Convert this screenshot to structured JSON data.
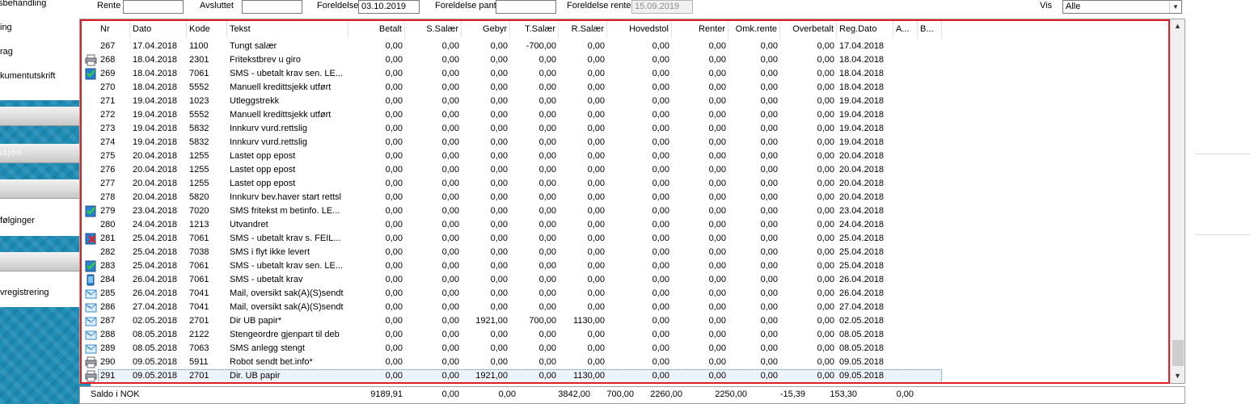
{
  "sidebar": {
    "top_items": [
      "sbehandling",
      "ing",
      "rag",
      "kumentutskrift"
    ],
    "group1_title": "",
    "group2_title": "asjon",
    "group3_items": [
      "følginger"
    ],
    "group4_items": [
      "vregistrering"
    ]
  },
  "filters": {
    "rente_til_label": "Rente til",
    "rente_til_value": "",
    "avsluttet_label": "Avsluttet",
    "avsluttet_value": "",
    "foreldelse_label": "Foreldelse",
    "foreldelse_value": "03.10.2019",
    "foreldelse_pant_label": "Foreldelse pant",
    "foreldelse_pant_value": "",
    "foreldelse_renter_label": "Foreldelse renter",
    "foreldelse_renter_value": "15.09.2019",
    "vis_label": "Vis",
    "vis_value": "Alle"
  },
  "columns": [
    "Nr",
    "Dato",
    "Kode",
    "Tekst",
    "Betalt",
    "S.Salær",
    "Gebyr",
    "T.Salær",
    "R.Salær",
    "Hovedstol",
    "Renter",
    "Omk.rente",
    "Overbetalt",
    "Reg.Dato",
    "A...",
    "B..."
  ],
  "rows": [
    {
      "icon": "",
      "nr": "267",
      "dato": "17.04.2018",
      "kode": "1100",
      "tekst": "Tungt salær",
      "betalt": "0,00",
      "ssalar": "0,00",
      "gebyr": "0,00",
      "tsalar": "-700,00",
      "rsalar": "0,00",
      "hovedstol": "0,00",
      "renter": "0,00",
      "omkrente": "0,00",
      "overbetalt": "0,00",
      "regdato": "17.04.2018"
    },
    {
      "icon": "printer",
      "nr": "268",
      "dato": "18.04.2018",
      "kode": "2301",
      "tekst": "Fritekstbrev u giro",
      "betalt": "0,00",
      "ssalar": "0,00",
      "gebyr": "0,00",
      "tsalar": "0,00",
      "rsalar": "0,00",
      "hovedstol": "0,00",
      "renter": "0,00",
      "omkrente": "0,00",
      "overbetalt": "0,00",
      "regdato": "18.04.2018"
    },
    {
      "icon": "sms-ok",
      "nr": "269",
      "dato": "18.04.2018",
      "kode": "7061",
      "tekst": "SMS - ubetalt krav sen. LE...",
      "betalt": "0,00",
      "ssalar": "0,00",
      "gebyr": "0,00",
      "tsalar": "0,00",
      "rsalar": "0,00",
      "hovedstol": "0,00",
      "renter": "0,00",
      "omkrente": "0,00",
      "overbetalt": "0,00",
      "regdato": "18.04.2018"
    },
    {
      "icon": "",
      "nr": "270",
      "dato": "18.04.2018",
      "kode": "5552",
      "tekst": "Manuell kredittsjekk utført",
      "betalt": "0,00",
      "ssalar": "0,00",
      "gebyr": "0,00",
      "tsalar": "0,00",
      "rsalar": "0,00",
      "hovedstol": "0,00",
      "renter": "0,00",
      "omkrente": "0,00",
      "overbetalt": "0,00",
      "regdato": "18.04.2018"
    },
    {
      "icon": "",
      "nr": "271",
      "dato": "19.04.2018",
      "kode": "1023",
      "tekst": "Utleggstrekk",
      "betalt": "0,00",
      "ssalar": "0,00",
      "gebyr": "0,00",
      "tsalar": "0,00",
      "rsalar": "0,00",
      "hovedstol": "0,00",
      "renter": "0,00",
      "omkrente": "0,00",
      "overbetalt": "0,00",
      "regdato": "19.04.2018"
    },
    {
      "icon": "",
      "nr": "272",
      "dato": "19.04.2018",
      "kode": "5552",
      "tekst": "Manuell kredittsjekk utført",
      "betalt": "0,00",
      "ssalar": "0,00",
      "gebyr": "0,00",
      "tsalar": "0,00",
      "rsalar": "0,00",
      "hovedstol": "0,00",
      "renter": "0,00",
      "omkrente": "0,00",
      "overbetalt": "0,00",
      "regdato": "19.04.2018"
    },
    {
      "icon": "",
      "nr": "273",
      "dato": "19.04.2018",
      "kode": "5832",
      "tekst": "Innkurv vurd.rettslig",
      "betalt": "0,00",
      "ssalar": "0,00",
      "gebyr": "0,00",
      "tsalar": "0,00",
      "rsalar": "0,00",
      "hovedstol": "0,00",
      "renter": "0,00",
      "omkrente": "0,00",
      "overbetalt": "0,00",
      "regdato": "19.04.2018"
    },
    {
      "icon": "",
      "nr": "274",
      "dato": "19.04.2018",
      "kode": "5832",
      "tekst": "Innkurv vurd.rettslig",
      "betalt": "0,00",
      "ssalar": "0,00",
      "gebyr": "0,00",
      "tsalar": "0,00",
      "rsalar": "0,00",
      "hovedstol": "0,00",
      "renter": "0,00",
      "omkrente": "0,00",
      "overbetalt": "0,00",
      "regdato": "19.04.2018"
    },
    {
      "icon": "",
      "nr": "275",
      "dato": "20.04.2018",
      "kode": "1255",
      "tekst": "Lastet opp epost",
      "betalt": "0,00",
      "ssalar": "0,00",
      "gebyr": "0,00",
      "tsalar": "0,00",
      "rsalar": "0,00",
      "hovedstol": "0,00",
      "renter": "0,00",
      "omkrente": "0,00",
      "overbetalt": "0,00",
      "regdato": "20.04.2018"
    },
    {
      "icon": "",
      "nr": "276",
      "dato": "20.04.2018",
      "kode": "1255",
      "tekst": "Lastet opp epost",
      "betalt": "0,00",
      "ssalar": "0,00",
      "gebyr": "0,00",
      "tsalar": "0,00",
      "rsalar": "0,00",
      "hovedstol": "0,00",
      "renter": "0,00",
      "omkrente": "0,00",
      "overbetalt": "0,00",
      "regdato": "20.04.2018"
    },
    {
      "icon": "",
      "nr": "277",
      "dato": "20.04.2018",
      "kode": "1255",
      "tekst": "Lastet opp epost",
      "betalt": "0,00",
      "ssalar": "0,00",
      "gebyr": "0,00",
      "tsalar": "0,00",
      "rsalar": "0,00",
      "hovedstol": "0,00",
      "renter": "0,00",
      "omkrente": "0,00",
      "overbetalt": "0,00",
      "regdato": "20.04.2018"
    },
    {
      "icon": "",
      "nr": "278",
      "dato": "20.04.2018",
      "kode": "5820",
      "tekst": "Innkurv bev.haver start rettsl",
      "betalt": "0,00",
      "ssalar": "0,00",
      "gebyr": "0,00",
      "tsalar": "0,00",
      "rsalar": "0,00",
      "hovedstol": "0,00",
      "renter": "0,00",
      "omkrente": "0,00",
      "overbetalt": "0,00",
      "regdato": "20.04.2018"
    },
    {
      "icon": "sms-ok",
      "nr": "279",
      "dato": "23.04.2018",
      "kode": "7020",
      "tekst": "SMS fritekst m betinfo. LE...",
      "betalt": "0,00",
      "ssalar": "0,00",
      "gebyr": "0,00",
      "tsalar": "0,00",
      "rsalar": "0,00",
      "hovedstol": "0,00",
      "renter": "0,00",
      "omkrente": "0,00",
      "overbetalt": "0,00",
      "regdato": "23.04.2018"
    },
    {
      "icon": "",
      "nr": "280",
      "dato": "24.04.2018",
      "kode": "1213",
      "tekst": "Utvandret",
      "betalt": "0,00",
      "ssalar": "0,00",
      "gebyr": "0,00",
      "tsalar": "0,00",
      "rsalar": "0,00",
      "hovedstol": "0,00",
      "renter": "0,00",
      "omkrente": "0,00",
      "overbetalt": "0,00",
      "regdato": "24.04.2018"
    },
    {
      "icon": "sms-fail",
      "nr": "281",
      "dato": "25.04.2018",
      "kode": "7061",
      "tekst": "SMS - ubetalt krav s. FEIL...",
      "betalt": "0,00",
      "ssalar": "0,00",
      "gebyr": "0,00",
      "tsalar": "0,00",
      "rsalar": "0,00",
      "hovedstol": "0,00",
      "renter": "0,00",
      "omkrente": "0,00",
      "overbetalt": "0,00",
      "regdato": "25.04.2018"
    },
    {
      "icon": "",
      "nr": "282",
      "dato": "25.04.2018",
      "kode": "7038",
      "tekst": "SMS i flyt ikke levert",
      "betalt": "0,00",
      "ssalar": "0,00",
      "gebyr": "0,00",
      "tsalar": "0,00",
      "rsalar": "0,00",
      "hovedstol": "0,00",
      "renter": "0,00",
      "omkrente": "0,00",
      "overbetalt": "0,00",
      "regdato": "25.04.2018"
    },
    {
      "icon": "sms-ok",
      "nr": "283",
      "dato": "25.04.2018",
      "kode": "7061",
      "tekst": "SMS - ubetalt krav sen. LE...",
      "betalt": "0,00",
      "ssalar": "0,00",
      "gebyr": "0,00",
      "tsalar": "0,00",
      "rsalar": "0,00",
      "hovedstol": "0,00",
      "renter": "0,00",
      "omkrente": "0,00",
      "overbetalt": "0,00",
      "regdato": "25.04.2018"
    },
    {
      "icon": "phone",
      "nr": "284",
      "dato": "26.04.2018",
      "kode": "7061",
      "tekst": "SMS - ubetalt krav",
      "betalt": "0,00",
      "ssalar": "0,00",
      "gebyr": "0,00",
      "tsalar": "0,00",
      "rsalar": "0,00",
      "hovedstol": "0,00",
      "renter": "0,00",
      "omkrente": "0,00",
      "overbetalt": "0,00",
      "regdato": "26.04.2018"
    },
    {
      "icon": "mail",
      "nr": "285",
      "dato": "26.04.2018",
      "kode": "7041",
      "tekst": "Mail, oversikt sak(A)(S)sendt",
      "betalt": "0,00",
      "ssalar": "0,00",
      "gebyr": "0,00",
      "tsalar": "0,00",
      "rsalar": "0,00",
      "hovedstol": "0,00",
      "renter": "0,00",
      "omkrente": "0,00",
      "overbetalt": "0,00",
      "regdato": "26.04.2018"
    },
    {
      "icon": "mail",
      "nr": "286",
      "dato": "27.04.2018",
      "kode": "7041",
      "tekst": "Mail, oversikt sak(A)(S)sendt",
      "betalt": "0,00",
      "ssalar": "0,00",
      "gebyr": "0,00",
      "tsalar": "0,00",
      "rsalar": "0,00",
      "hovedstol": "0,00",
      "renter": "0,00",
      "omkrente": "0,00",
      "overbetalt": "0,00",
      "regdato": "27.04.2018"
    },
    {
      "icon": "mail",
      "nr": "287",
      "dato": "02.05.2018",
      "kode": "2701",
      "tekst": "Dir UB papir*",
      "betalt": "0,00",
      "ssalar": "0,00",
      "gebyr": "1921,00",
      "tsalar": "700,00",
      "rsalar": "1130,00",
      "hovedstol": "0,00",
      "renter": "0,00",
      "omkrente": "0,00",
      "overbetalt": "0,00",
      "regdato": "02.05.2018"
    },
    {
      "icon": "mail",
      "nr": "288",
      "dato": "08.05.2018",
      "kode": "2122",
      "tekst": "Stengeordre gjenpart til deb",
      "betalt": "0,00",
      "ssalar": "0,00",
      "gebyr": "0,00",
      "tsalar": "0,00",
      "rsalar": "0,00",
      "hovedstol": "0,00",
      "renter": "0,00",
      "omkrente": "0,00",
      "overbetalt": "0,00",
      "regdato": "08.05.2018"
    },
    {
      "icon": "mail",
      "nr": "289",
      "dato": "08.05.2018",
      "kode": "7063",
      "tekst": "SMS anlegg stengt",
      "betalt": "0,00",
      "ssalar": "0,00",
      "gebyr": "0,00",
      "tsalar": "0,00",
      "rsalar": "0,00",
      "hovedstol": "0,00",
      "renter": "0,00",
      "omkrente": "0,00",
      "overbetalt": "0,00",
      "regdato": "08.05.2018"
    },
    {
      "icon": "printer",
      "nr": "290",
      "dato": "09.05.2018",
      "kode": "5911",
      "tekst": "Robot sendt bet.info*",
      "betalt": "0,00",
      "ssalar": "0,00",
      "gebyr": "0,00",
      "tsalar": "0,00",
      "rsalar": "0,00",
      "hovedstol": "0,00",
      "renter": "0,00",
      "omkrente": "0,00",
      "overbetalt": "0,00",
      "regdato": "09.05.2018"
    },
    {
      "icon": "printer",
      "nr": "291",
      "dato": "09.05.2018",
      "kode": "2701",
      "tekst": "Dir. UB papir",
      "betalt": "0,00",
      "ssalar": "0,00",
      "gebyr": "1921,00",
      "tsalar": "0,00",
      "rsalar": "1130,00",
      "hovedstol": "0,00",
      "renter": "0,00",
      "omkrente": "0,00",
      "overbetalt": "0,00",
      "regdato": "09.05.2018",
      "selected": true
    }
  ],
  "summary": {
    "label": "Saldo i NOK",
    "betalt": "9189,91",
    "ssalar": "0,00",
    "gebyr_a": "0,00",
    "gebyr": "3842,00",
    "tsalar": "700,00",
    "rsalar": "2260,00",
    "hovedstol": "2250,00",
    "renter": "-15,39",
    "omkrente": "153,30",
    "overbetalt": "0,00"
  }
}
